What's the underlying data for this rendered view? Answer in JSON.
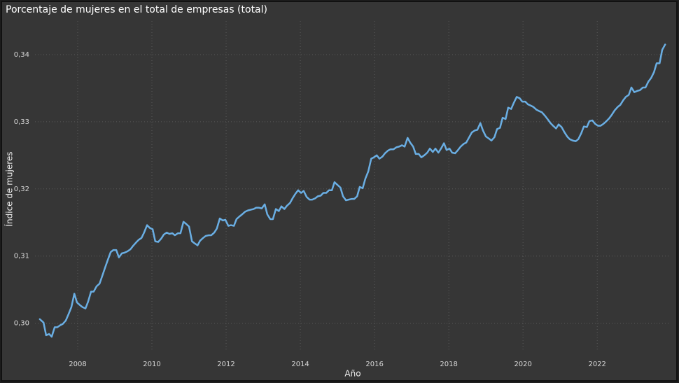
{
  "chart_data": {
    "type": "line",
    "title": "Porcentaje de mujeres en el total de empresas (total)",
    "x_label": "Año",
    "y_label": "Índice de mujeres",
    "color": "#6aaee3",
    "grid": true,
    "xlim": [
      2006.85,
      2023.92
    ],
    "xticks": [
      2008,
      2010,
      2012,
      2014,
      2016,
      2018,
      2020,
      2022
    ],
    "ylim": [
      0.296,
      0.345
    ],
    "yticks": [
      {
        "value": 0.3,
        "label": "0,30"
      },
      {
        "value": 0.31,
        "label": "0,31"
      },
      {
        "value": 0.32,
        "label": "0,32"
      },
      {
        "value": 0.33,
        "label": "0,33"
      },
      {
        "value": 0.34,
        "label": "0,34"
      }
    ],
    "x": [
      2006.98,
      2007.08,
      2007.15,
      2007.23,
      2007.3,
      2007.38,
      2007.45,
      2007.53,
      2007.6,
      2007.68,
      2007.75,
      2007.83,
      2007.91,
      2007.98,
      2008.06,
      2008.13,
      2008.21,
      2008.28,
      2008.36,
      2008.43,
      2008.51,
      2008.59,
      2008.66,
      2008.74,
      2008.81,
      2008.89,
      2008.96,
      2009.04,
      2009.11,
      2009.19,
      2009.26,
      2009.34,
      2009.42,
      2009.49,
      2009.57,
      2009.64,
      2009.72,
      2009.79,
      2009.87,
      2009.94,
      2010.02,
      2010.09,
      2010.17,
      2010.25,
      2010.32,
      2010.4,
      2010.47,
      2010.55,
      2010.62,
      2010.7,
      2010.77,
      2010.85,
      2010.92,
      2011.0,
      2011.08,
      2011.15,
      2011.23,
      2011.3,
      2011.38,
      2011.45,
      2011.53,
      2011.6,
      2011.68,
      2011.75,
      2011.83,
      2011.91,
      2011.98,
      2012.06,
      2012.13,
      2012.21,
      2012.28,
      2012.36,
      2012.43,
      2012.51,
      2012.59,
      2012.66,
      2012.74,
      2012.81,
      2012.89,
      2012.96,
      2013.04,
      2013.11,
      2013.19,
      2013.26,
      2013.34,
      2013.42,
      2013.49,
      2013.57,
      2013.64,
      2013.72,
      2013.79,
      2013.87,
      2013.94,
      2014.02,
      2014.09,
      2014.17,
      2014.25,
      2014.32,
      2014.4,
      2014.47,
      2014.55,
      2014.62,
      2014.7,
      2014.77,
      2014.85,
      2014.92,
      2015.0,
      2015.08,
      2015.15,
      2015.23,
      2015.3,
      2015.38,
      2015.45,
      2015.53,
      2015.6,
      2015.68,
      2015.75,
      2015.83,
      2015.91,
      2015.98,
      2016.06,
      2016.13,
      2016.21,
      2016.28,
      2016.36,
      2016.43,
      2016.51,
      2016.59,
      2016.66,
      2016.74,
      2016.81,
      2016.89,
      2016.96,
      2017.04,
      2017.11,
      2017.19,
      2017.26,
      2017.34,
      2017.42,
      2017.49,
      2017.57,
      2017.64,
      2017.72,
      2017.79,
      2017.87,
      2017.94,
      2018.02,
      2018.09,
      2018.17,
      2018.25,
      2018.32,
      2018.4,
      2018.47,
      2018.55,
      2018.62,
      2018.7,
      2018.77,
      2018.85,
      2018.92,
      2019.0,
      2019.08,
      2019.15,
      2019.23,
      2019.3,
      2019.38,
      2019.45,
      2019.53,
      2019.6,
      2019.68,
      2019.75,
      2019.83,
      2019.91,
      2019.98,
      2020.06,
      2020.13,
      2020.21,
      2020.28,
      2020.36,
      2020.43,
      2020.51,
      2020.59,
      2020.66,
      2020.74,
      2020.81,
      2020.89,
      2020.96,
      2021.04,
      2021.11,
      2021.19,
      2021.26,
      2021.34,
      2021.42,
      2021.49,
      2021.57,
      2021.64,
      2021.72,
      2021.79,
      2021.87,
      2021.94,
      2022.02,
      2022.09,
      2022.17,
      2022.25,
      2022.32,
      2022.4,
      2022.47,
      2022.55,
      2022.62,
      2022.7,
      2022.77,
      2022.85,
      2022.92,
      2023.0,
      2023.08,
      2023.15,
      2023.23,
      2023.3,
      2023.38,
      2023.45,
      2023.53,
      2023.6,
      2023.68,
      2023.75,
      2023.83
    ],
    "values": [
      0.3006,
      0.3001,
      0.2982,
      0.2984,
      0.298,
      0.2994,
      0.2994,
      0.2997,
      0.2999,
      0.3004,
      0.3013,
      0.3024,
      0.3044,
      0.3031,
      0.3027,
      0.3024,
      0.3022,
      0.3032,
      0.3047,
      0.3047,
      0.3055,
      0.3059,
      0.307,
      0.3083,
      0.3094,
      0.3106,
      0.3109,
      0.3109,
      0.3098,
      0.3104,
      0.3105,
      0.3107,
      0.311,
      0.3115,
      0.312,
      0.3124,
      0.3127,
      0.3135,
      0.3146,
      0.3142,
      0.314,
      0.3122,
      0.3121,
      0.3126,
      0.3132,
      0.3135,
      0.3133,
      0.3134,
      0.3131,
      0.3134,
      0.3134,
      0.3151,
      0.3148,
      0.3144,
      0.3122,
      0.3119,
      0.3116,
      0.3123,
      0.3127,
      0.313,
      0.3131,
      0.3131,
      0.3135,
      0.3141,
      0.3156,
      0.3153,
      0.3154,
      0.3145,
      0.3146,
      0.3145,
      0.3155,
      0.3159,
      0.3162,
      0.3166,
      0.3168,
      0.3169,
      0.317,
      0.3172,
      0.3172,
      0.3171,
      0.3177,
      0.3162,
      0.3155,
      0.3155,
      0.317,
      0.3167,
      0.3174,
      0.317,
      0.3175,
      0.3179,
      0.3186,
      0.3193,
      0.3198,
      0.3194,
      0.3197,
      0.3188,
      0.3184,
      0.3184,
      0.3186,
      0.3189,
      0.319,
      0.3194,
      0.3194,
      0.3198,
      0.3198,
      0.321,
      0.3206,
      0.3202,
      0.3189,
      0.3183,
      0.3184,
      0.3185,
      0.3185,
      0.3189,
      0.3203,
      0.3201,
      0.3215,
      0.3226,
      0.3245,
      0.3247,
      0.325,
      0.3245,
      0.3248,
      0.3253,
      0.3257,
      0.3259,
      0.3259,
      0.3262,
      0.3263,
      0.3265,
      0.3263,
      0.3276,
      0.3269,
      0.3263,
      0.3252,
      0.3252,
      0.3247,
      0.325,
      0.3254,
      0.326,
      0.3255,
      0.326,
      0.3254,
      0.326,
      0.3268,
      0.3258,
      0.326,
      0.3254,
      0.3253,
      0.3258,
      0.3263,
      0.3267,
      0.3269,
      0.3277,
      0.3284,
      0.3287,
      0.3288,
      0.3298,
      0.3287,
      0.3278,
      0.3275,
      0.3272,
      0.3277,
      0.3289,
      0.3291,
      0.3306,
      0.3304,
      0.3321,
      0.3319,
      0.3328,
      0.3337,
      0.3335,
      0.333,
      0.333,
      0.3326,
      0.3324,
      0.3322,
      0.3318,
      0.3316,
      0.3314,
      0.3309,
      0.3304,
      0.3298,
      0.3294,
      0.329,
      0.3296,
      0.3292,
      0.3285,
      0.3278,
      0.3274,
      0.3272,
      0.3271,
      0.3274,
      0.3283,
      0.3293,
      0.3292,
      0.3301,
      0.3302,
      0.3297,
      0.3294,
      0.3294,
      0.3297,
      0.3301,
      0.3305,
      0.3311,
      0.3317,
      0.3322,
      0.3325,
      0.3332,
      0.3337,
      0.334,
      0.3351,
      0.3344,
      0.3346,
      0.3347,
      0.3351,
      0.3351,
      0.336,
      0.3365,
      0.3374,
      0.3387,
      0.3387,
      0.3407,
      0.3415
    ]
  }
}
